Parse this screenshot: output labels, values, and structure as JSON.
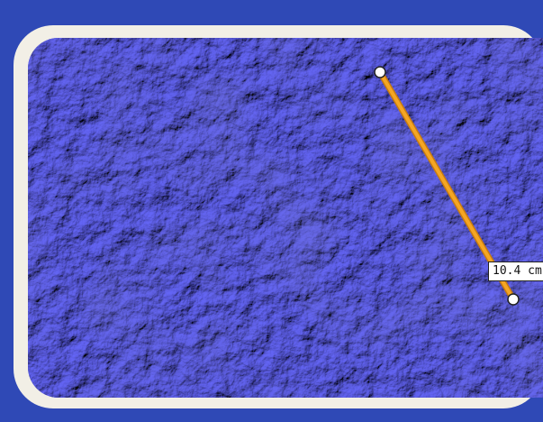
{
  "viewport": {
    "surface_colors": {
      "base": "#6f70d8",
      "highlight": "#a8a9ff",
      "shadow": "#3a3aa0"
    }
  },
  "measurement": {
    "label": "10.4 cm",
    "line_color": "#f5a623",
    "handle_color": "#ffffff",
    "handle_icon": "circle-handle-icon"
  }
}
